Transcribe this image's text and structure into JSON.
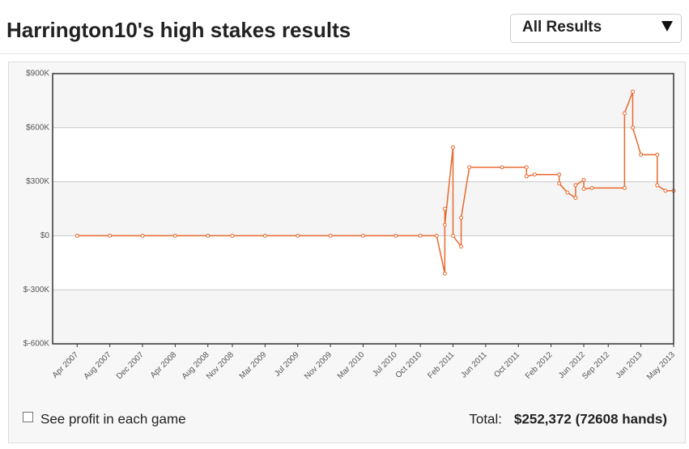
{
  "header": {
    "title": "Harrington10's high stakes results"
  },
  "dropdown": {
    "selected": "All Results"
  },
  "chart_data": {
    "type": "line",
    "x": [
      "Apr 2007",
      "Aug 2007",
      "Dec 2007",
      "Apr 2008",
      "Aug 2008",
      "Nov 2008",
      "Mar 2009",
      "Jul 2009",
      "Nov 2009",
      "Mar 2010",
      "Jul 2010",
      "Oct 2010",
      "Dec 2010",
      "Jan 2011",
      "Jan 2011",
      "Jan 2011",
      "Feb 2011",
      "Feb 2011",
      "Mar 2011",
      "Mar 2011",
      "Apr 2011",
      "Aug 2011",
      "Nov 2011",
      "Nov 2011",
      "Dec 2011",
      "Mar 2012",
      "Mar 2012",
      "Apr 2012",
      "May 2012",
      "May 2012",
      "Jun 2012",
      "Jun 2012",
      "Jul 2012",
      "Nov 2012",
      "Nov 2012",
      "Dec 2012",
      "Dec 2012",
      "Jan 2013",
      "Mar 2013",
      "Mar 2013",
      "Apr 2013",
      "May 2013"
    ],
    "series": [
      {
        "color": "#e8692e",
        "values": [
          0,
          0,
          0,
          0,
          0,
          0,
          0,
          0,
          0,
          0,
          0,
          0,
          0,
          -210000,
          150000,
          60000,
          490000,
          0,
          -60000,
          100000,
          380000,
          380000,
          380000,
          330000,
          340000,
          340000,
          290000,
          240000,
          210000,
          280000,
          310000,
          260000,
          265000,
          265000,
          680000,
          800000,
          600000,
          450000,
          450000,
          280000,
          250000,
          250000
        ]
      }
    ],
    "xlim": [
      "Jan 2007",
      "May 2013"
    ],
    "xticks": [
      "Apr 2007",
      "Aug 2007",
      "Dec 2007",
      "Apr 2008",
      "Aug 2008",
      "Nov 2008",
      "Mar 2009",
      "Jul 2009",
      "Nov 2009",
      "Mar 2010",
      "Jul 2010",
      "Oct 2010",
      "Feb 2011",
      "Jun 2011",
      "Oct 2011",
      "Feb 2012",
      "Jun 2012",
      "Sep 2012",
      "Jan 2013",
      "May 2013"
    ],
    "ylim": [
      -600000,
      900000
    ],
    "yticks": [
      {
        "value": -600000,
        "label": "$-600K"
      },
      {
        "value": -300000,
        "label": "$-300K"
      },
      {
        "value": 0,
        "label": "$0"
      },
      {
        "value": 300000,
        "label": "$300K"
      },
      {
        "value": 600000,
        "label": "$600K"
      },
      {
        "value": 900000,
        "label": "$900K"
      }
    ],
    "grid": true
  },
  "footer": {
    "checkbox_label": "See profit in each game",
    "total_label": "Total:",
    "total_value": "$252,372 (72608 hands)"
  }
}
